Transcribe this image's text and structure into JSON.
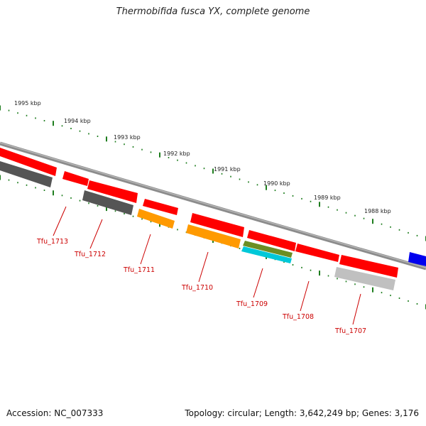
{
  "header": {
    "title": "Thermobifida fusca YX, complete genome"
  },
  "footer": {
    "accession": "Accession: NC_007333",
    "topology": "Topology: circular; Length: 3,642,249 bp; Genes: 3,176"
  },
  "scale": {
    "labels": [
      "1995 kbp",
      "1994 kbp",
      "1993 kbp",
      "1992 kbp",
      "1991 kbp",
      "1990 kbp",
      "1989 kbp",
      "1988 kbp"
    ]
  },
  "genes": {
    "labels": [
      "Tfu_1713",
      "Tfu_1712",
      "Tfu_1711",
      "Tfu_1710",
      "Tfu_1709",
      "Tfu_1708",
      "Tfu_1707"
    ]
  },
  "colors": {
    "backbone": "#8c8c8c",
    "cds": "#ff0000",
    "tick": "#1e7d1e",
    "dark_gray": "#555555",
    "orange": "#ff9a00",
    "olive": "#6b8e23",
    "cyan": "#00c8d8",
    "light_gray": "#c0c0c0",
    "blue": "#0000ee",
    "label": "#cc0000"
  }
}
